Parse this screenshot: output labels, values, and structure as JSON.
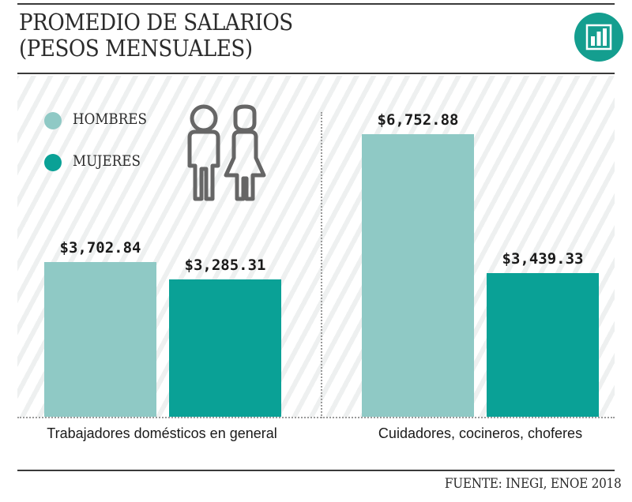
{
  "header": {
    "title_line1": "PROMEDIO DE SALARIOS",
    "title_line2": "(PESOS MENSUALES)"
  },
  "icons": {
    "badge": "bar-chart-icon",
    "people": "man-and-woman-icon"
  },
  "colors": {
    "hombres": "#8fc9c5",
    "mujeres": "#0aa196",
    "badge": "#149e8f"
  },
  "legend": [
    {
      "label": "HOMBRES",
      "color": "#8fc9c5"
    },
    {
      "label": "MUJERES",
      "color": "#0aa196"
    }
  ],
  "chart_data": {
    "type": "bar",
    "categories": [
      "Trabajadores domésticos en general",
      "Cuidadores, cocineros, choferes"
    ],
    "series": [
      {
        "name": "HOMBRES",
        "values": [
          3702.84,
          6752.88
        ],
        "labels": [
          "$3,702.84",
          "$6,752.88"
        ]
      },
      {
        "name": "MUJERES",
        "values": [
          3285.31,
          3439.33
        ],
        "labels": [
          "$3,285.31",
          "$3,439.33"
        ]
      }
    ],
    "ylim": [
      0,
      6752.88
    ],
    "grid": false,
    "legend_position": "top-left"
  },
  "footer": {
    "source": "FUENTE: INEGI, ENOE 2018"
  }
}
